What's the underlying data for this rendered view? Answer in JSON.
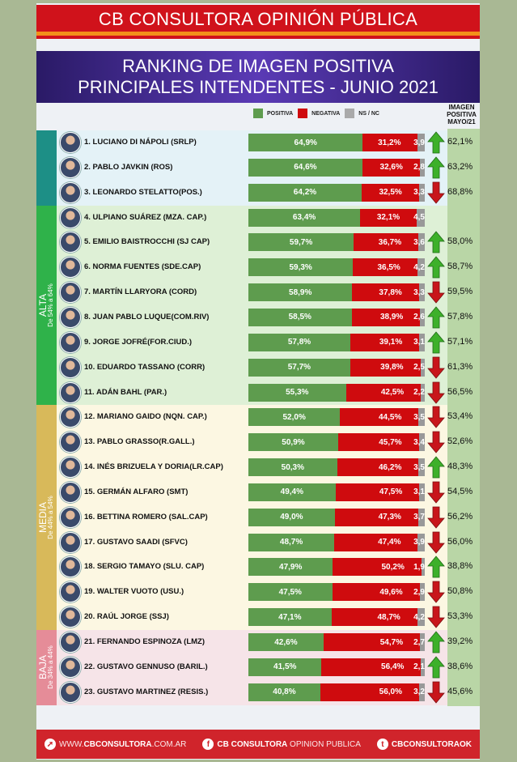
{
  "header": {
    "brand": "CB CONSULTORA OPINIÓN PÚBLICA"
  },
  "title": {
    "line1": "RANKING DE IMAGEN POSITIVA",
    "line2": "PRINCIPALES INTENDENTES - JUNIO 2021"
  },
  "footer": {
    "web_prefix": "WWW.",
    "web_bold": "CBCONSULTORA",
    "web_suffix": ".COM.AR",
    "fb_bold": "CB CONSULTORA",
    "fb_light": " OPINION PUBLICA",
    "twitter": "CBCONSULTORAOK",
    "web_icon": "cursor-click-icon",
    "fb_icon": "facebook-icon",
    "twitter_icon": "twitter-icon"
  },
  "colors": {
    "positiva": "#5e9c4e",
    "negativa": "#cf0b0e",
    "nsnc": "#999999",
    "up": "#3db02a",
    "down": "#c8161b"
  },
  "chart_data": {
    "type": "bar",
    "stacked": true,
    "orientation": "horizontal",
    "title": "RANKING DE IMAGEN POSITIVA PRINCIPALES INTENDENTES - JUNIO 2021",
    "legend": [
      "POSITIVA",
      "NEGATIVA",
      "NS / NC"
    ],
    "legend_placement": "top",
    "comparison_header": "IMAGEN POSITIVA MAYO/21",
    "groups": [
      {
        "name": "ALTA",
        "range": "De 54% a 64%",
        "color": "#2fb24a",
        "rows_from": 4,
        "rows_to": 11
      },
      {
        "name": "MEDIA",
        "range": "De 44% a 54%",
        "color": "#d8b95a",
        "rows_from": 12,
        "rows_to": 20
      },
      {
        "name": "BAJA",
        "range": "De 34% a 44%",
        "color": "#e58c98",
        "rows_from": 21,
        "rows_to": 23
      }
    ],
    "rows": [
      {
        "rank": "1.",
        "name": "LUCIANO DI NÁPOLI (SRLP)",
        "positiva": 64.9,
        "negativa": 31.2,
        "nsnc": 3.9,
        "pos_label": "64,9%",
        "neg_label": "31,2%",
        "ns_label": "3,9",
        "trend": "up",
        "mayo": "62,1%"
      },
      {
        "rank": "2.",
        "name": "PABLO JAVKIN (ROS)",
        "positiva": 64.6,
        "negativa": 32.6,
        "nsnc": 2.8,
        "pos_label": "64,6%",
        "neg_label": "32,6%",
        "ns_label": "2,8",
        "trend": "up",
        "mayo": "63,2%"
      },
      {
        "rank": "3.",
        "name": "LEONARDO STELATTO(POS.)",
        "positiva": 64.2,
        "negativa": 32.5,
        "nsnc": 3.3,
        "pos_label": "64,2%",
        "neg_label": "32,5%",
        "ns_label": "3,3",
        "trend": "down",
        "mayo": "68,8%"
      },
      {
        "rank": "4.",
        "name": "ULPIANO SUÁREZ (MZA. CAP.)",
        "positiva": 63.4,
        "negativa": 32.1,
        "nsnc": 4.5,
        "pos_label": "63,4%",
        "neg_label": "32,1%",
        "ns_label": "4,5",
        "trend": "none",
        "mayo": ""
      },
      {
        "rank": "5.",
        "name": "EMILIO BAISTROCCHI (SJ CAP)",
        "positiva": 59.7,
        "negativa": 36.7,
        "nsnc": 3.6,
        "pos_label": "59,7%",
        "neg_label": "36,7%",
        "ns_label": "3,6",
        "trend": "up",
        "mayo": "58,0%"
      },
      {
        "rank": "6.",
        "name": "NORMA FUENTES (SDE.CAP)",
        "positiva": 59.3,
        "negativa": 36.5,
        "nsnc": 4.2,
        "pos_label": "59,3%",
        "neg_label": "36,5%",
        "ns_label": "4,2",
        "trend": "up",
        "mayo": "58,7%"
      },
      {
        "rank": "7.",
        "name": "MARTÍN LLARYORA (CORD)",
        "positiva": 58.9,
        "negativa": 37.8,
        "nsnc": 3.3,
        "pos_label": "58,9%",
        "neg_label": "37,8%",
        "ns_label": "3,3",
        "trend": "down",
        "mayo": "59,5%"
      },
      {
        "rank": "8.",
        "name": "JUAN PABLO LUQUE(COM.RIV)",
        "positiva": 58.5,
        "negativa": 38.9,
        "nsnc": 2.6,
        "pos_label": "58,5%",
        "neg_label": "38,9%",
        "ns_label": "2,6",
        "trend": "up",
        "mayo": "57,8%"
      },
      {
        "rank": "9.",
        "name": "JORGE JOFRÉ(FOR.CIUD.)",
        "positiva": 57.8,
        "negativa": 39.1,
        "nsnc": 3.1,
        "pos_label": "57,8%",
        "neg_label": "39,1%",
        "ns_label": "3,1",
        "trend": "up",
        "mayo": "57,1%"
      },
      {
        "rank": "10.",
        "name": "EDUARDO TASSANO (CORR)",
        "positiva": 57.7,
        "negativa": 39.8,
        "nsnc": 2.5,
        "pos_label": "57,7%",
        "neg_label": "39,8%",
        "ns_label": "2,5",
        "trend": "down",
        "mayo": "61,3%"
      },
      {
        "rank": "11.",
        "name": "ADÁN BAHL (PAR.)",
        "positiva": 55.3,
        "negativa": 42.5,
        "nsnc": 2.2,
        "pos_label": "55,3%",
        "neg_label": "42,5%",
        "ns_label": "2,2",
        "trend": "down",
        "mayo": "56,5%"
      },
      {
        "rank": "12.",
        "name": "MARIANO GAIDO (NQN. CAP.)",
        "positiva": 52.0,
        "negativa": 44.5,
        "nsnc": 3.5,
        "pos_label": "52,0%",
        "neg_label": "44,5%",
        "ns_label": "3,5",
        "trend": "down",
        "mayo": "53,4%"
      },
      {
        "rank": "13.",
        "name": "PABLO GRASSO(R.GALL.)",
        "positiva": 50.9,
        "negativa": 45.7,
        "nsnc": 3.4,
        "pos_label": "50,9%",
        "neg_label": "45,7%",
        "ns_label": "3,4",
        "trend": "down",
        "mayo": "52,6%"
      },
      {
        "rank": "14.",
        "name": "INÉS BRIZUELA Y DORIA(LR.CAP)",
        "positiva": 50.3,
        "negativa": 46.2,
        "nsnc": 3.5,
        "pos_label": "50,3%",
        "neg_label": "46,2%",
        "ns_label": "3,5",
        "trend": "up",
        "mayo": "48,3%"
      },
      {
        "rank": "15.",
        "name": "GERMÁN ALFARO (SMT)",
        "positiva": 49.4,
        "negativa": 47.5,
        "nsnc": 3.1,
        "pos_label": "49,4%",
        "neg_label": "47,5%",
        "ns_label": "3,1",
        "trend": "down",
        "mayo": "54,5%"
      },
      {
        "rank": "16.",
        "name": "BETTINA ROMERO (SAL.CAP)",
        "positiva": 49.0,
        "negativa": 47.3,
        "nsnc": 3.7,
        "pos_label": "49,0%",
        "neg_label": "47,3%",
        "ns_label": "3,7",
        "trend": "down",
        "mayo": "56,2%"
      },
      {
        "rank": "17.",
        "name": "GUSTAVO SAADI (SFVC)",
        "positiva": 48.7,
        "negativa": 47.4,
        "nsnc": 3.9,
        "pos_label": "48,7%",
        "neg_label": "47,4%",
        "ns_label": "3,9",
        "trend": "down",
        "mayo": "56,0%"
      },
      {
        "rank": "18.",
        "name": "SERGIO TAMAYO (SLU. CAP)",
        "positiva": 47.9,
        "negativa": 50.2,
        "nsnc": 1.9,
        "pos_label": "47,9%",
        "neg_label": "50,2%",
        "ns_label": "1,9",
        "trend": "up",
        "mayo": "38,8%"
      },
      {
        "rank": "19.",
        "name": "WALTER VUOTO (USU.)",
        "positiva": 47.5,
        "negativa": 49.6,
        "nsnc": 2.9,
        "pos_label": "47,5%",
        "neg_label": "49,6%",
        "ns_label": "2,9",
        "trend": "down",
        "mayo": "50,8%"
      },
      {
        "rank": "20.",
        "name": "RAÚL JORGE (SSJ)",
        "positiva": 47.1,
        "negativa": 48.7,
        "nsnc": 4.2,
        "pos_label": "47,1%",
        "neg_label": "48,7%",
        "ns_label": "4,2",
        "trend": "down",
        "mayo": "53,3%"
      },
      {
        "rank": "21.",
        "name": "FERNANDO ESPINOZA (LMZ)",
        "positiva": 42.6,
        "negativa": 54.7,
        "nsnc": 2.7,
        "pos_label": "42,6%",
        "neg_label": "54,7%",
        "ns_label": "2,7",
        "trend": "up",
        "mayo": "39,2%"
      },
      {
        "rank": "22.",
        "name": "GUSTAVO GENNUSO (BARIL.)",
        "positiva": 41.5,
        "negativa": 56.4,
        "nsnc": 2.1,
        "pos_label": "41,5%",
        "neg_label": "56,4%",
        "ns_label": "2,1",
        "trend": "up",
        "mayo": "38,6%"
      },
      {
        "rank": "23.",
        "name": "GUSTAVO MARTINEZ (RESIS.)",
        "positiva": 40.8,
        "negativa": 56.0,
        "nsnc": 3.2,
        "pos_label": "40,8%",
        "neg_label": "56,0%",
        "ns_label": "3,2",
        "trend": "down",
        "mayo": "45,6%"
      }
    ]
  }
}
